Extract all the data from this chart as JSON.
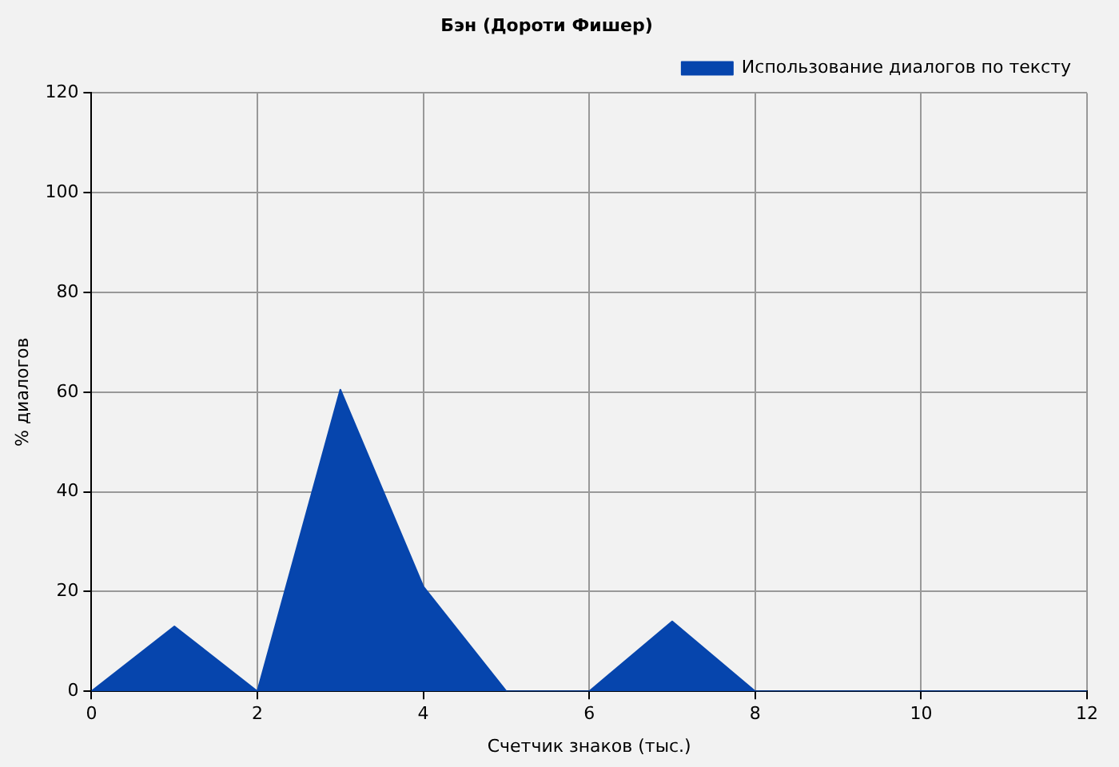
{
  "chart_data": {
    "type": "area",
    "title": "Бэн (Дороти Фишер)",
    "xlabel": "Счетчик знаков (тыс.)",
    "ylabel": "% диалогов",
    "x": [
      0,
      1,
      2,
      3,
      4,
      5,
      6,
      7,
      8,
      9,
      10,
      11,
      12
    ],
    "series": [
      {
        "name": "Использование диалогов по тексту",
        "color": "#0645ad",
        "values": [
          0,
          13,
          0,
          60.5,
          21,
          0,
          0,
          14,
          0,
          0,
          0,
          0,
          0
        ]
      }
    ],
    "xlim": [
      0,
      12
    ],
    "xticks": [
      0,
      2,
      4,
      6,
      8,
      10,
      12
    ],
    "ylim": [
      0,
      120
    ],
    "yticks": [
      0,
      20,
      40,
      60,
      80,
      100,
      120
    ],
    "grid": true,
    "legend": "top right",
    "marker": "none",
    "line_style": "solid"
  }
}
